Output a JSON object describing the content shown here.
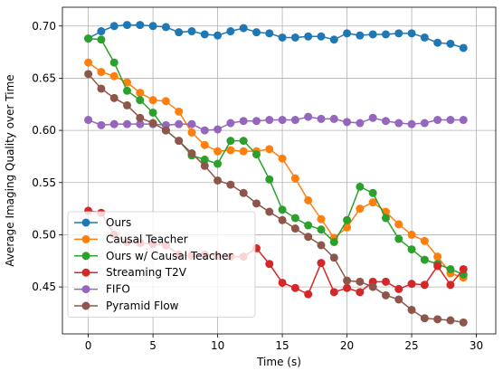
{
  "chart_data": {
    "type": "line",
    "title": "",
    "xlabel": "Time (s)",
    "ylabel": "Average Imaging Quality over Time",
    "xlim": [
      -2,
      31.5
    ],
    "ylim": [
      0.405,
      0.718
    ],
    "xticks": [
      0,
      5,
      10,
      15,
      20,
      25,
      30
    ],
    "yticks": [
      0.45,
      0.5,
      0.55,
      0.6,
      0.65,
      0.7
    ],
    "ytick_labels": [
      "0.45",
      "0.50",
      "0.55",
      "0.60",
      "0.65",
      "0.70"
    ],
    "grid": true,
    "legend_position": "lower-left",
    "x": [
      0,
      1,
      2,
      3,
      4,
      5,
      6,
      7,
      8,
      9,
      10,
      11,
      12,
      13,
      14,
      15,
      16,
      17,
      18,
      19,
      20,
      21,
      22,
      23,
      24,
      25,
      26,
      27,
      28,
      29
    ],
    "series": [
      {
        "name": "Ours",
        "color": "#1f77b4",
        "values": [
          0.688,
          0.695,
          0.7,
          0.701,
          0.701,
          0.7,
          0.699,
          0.694,
          0.695,
          0.692,
          0.691,
          0.695,
          0.698,
          0.694,
          0.693,
          0.689,
          0.689,
          0.69,
          0.69,
          0.687,
          0.693,
          0.691,
          0.692,
          0.692,
          0.693,
          0.693,
          0.689,
          0.684,
          0.683,
          0.679
        ]
      },
      {
        "name": "Causal Teacher",
        "color": "#ff7f0e",
        "values": [
          0.665,
          0.656,
          0.652,
          0.646,
          0.636,
          0.629,
          0.628,
          0.618,
          0.598,
          0.586,
          0.58,
          0.581,
          0.58,
          0.58,
          0.582,
          0.573,
          0.554,
          0.533,
          0.515,
          0.497,
          0.507,
          0.525,
          0.531,
          0.522,
          0.51,
          0.5,
          0.494,
          0.479,
          0.463,
          0.459
        ]
      },
      {
        "name": "Ours w/ Causal Teacher",
        "color": "#2ca02c",
        "values": [
          0.688,
          0.687,
          0.665,
          0.638,
          0.629,
          0.617,
          0.6,
          0.59,
          0.576,
          0.572,
          0.568,
          0.59,
          0.59,
          0.577,
          0.553,
          0.524,
          0.516,
          0.509,
          0.505,
          0.493,
          0.514,
          0.546,
          0.54,
          0.516,
          0.496,
          0.486,
          0.476,
          0.472,
          0.467,
          0.462
        ]
      },
      {
        "name": "Streaming T2V",
        "color": "#d62728",
        "values": [
          0.523,
          0.521,
          0.5,
          0.493,
          0.492,
          0.491,
          0.49,
          0.481,
          0.48,
          0.481,
          0.48,
          0.479,
          0.479,
          0.487,
          0.472,
          0.454,
          0.449,
          0.443,
          0.473,
          0.445,
          0.449,
          0.445,
          0.455,
          0.455,
          0.448,
          0.453,
          0.452,
          0.47,
          0.452,
          0.467
        ]
      },
      {
        "name": "FIFO",
        "color": "#9467bd",
        "values": [
          0.61,
          0.605,
          0.606,
          0.606,
          0.606,
          0.606,
          0.605,
          0.606,
          0.606,
          0.6,
          0.601,
          0.607,
          0.609,
          0.609,
          0.61,
          0.61,
          0.61,
          0.613,
          0.611,
          0.611,
          0.608,
          0.607,
          0.612,
          0.609,
          0.607,
          0.606,
          0.607,
          0.61,
          0.61,
          0.61
        ]
      },
      {
        "name": "Pyramid Flow",
        "color": "#8c564b",
        "values": [
          0.654,
          0.64,
          0.631,
          0.624,
          0.612,
          0.607,
          0.6,
          0.59,
          0.578,
          0.566,
          0.552,
          0.548,
          0.54,
          0.53,
          0.522,
          0.514,
          0.506,
          0.498,
          0.49,
          0.478,
          0.456,
          0.455,
          0.45,
          0.442,
          0.438,
          0.428,
          0.42,
          0.419,
          0.418,
          0.416
        ]
      }
    ]
  }
}
